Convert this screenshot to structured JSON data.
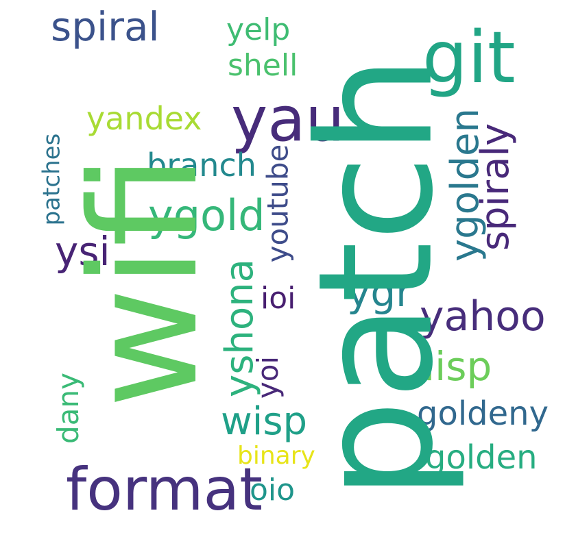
{
  "words": [
    {
      "text": "patch",
      "color": "#22a785"
    },
    {
      "text": "wifi",
      "color": "#5ec962"
    },
    {
      "text": "git",
      "color": "#21a585"
    },
    {
      "text": "format",
      "color": "#46327e"
    },
    {
      "text": "yau",
      "color": "#472c7a"
    },
    {
      "text": "spiral",
      "color": "#3b528b"
    },
    {
      "text": "spiraly",
      "color": "#482979"
    },
    {
      "text": "ygolden",
      "color": "#2a788e"
    },
    {
      "text": "ygold",
      "color": "#35b779"
    },
    {
      "text": "yshona",
      "color": "#2db27d"
    },
    {
      "text": "ysi",
      "color": "#482475"
    },
    {
      "text": "yahoo",
      "color": "#472d7b"
    },
    {
      "text": "wisp",
      "color": "#1fa088"
    },
    {
      "text": "lisp",
      "color": "#6ccd5a"
    },
    {
      "text": "ygr",
      "color": "#25858e"
    },
    {
      "text": "golden",
      "color": "#27ad81"
    },
    {
      "text": "goldeny",
      "color": "#31688e"
    },
    {
      "text": "branch",
      "color": "#23898e"
    },
    {
      "text": "yandex",
      "color": "#a8db34"
    },
    {
      "text": "youtube",
      "color": "#3e4c8a"
    },
    {
      "text": "shell",
      "color": "#4ac16d"
    },
    {
      "text": "yelp",
      "color": "#3fbc73"
    },
    {
      "text": "yoi",
      "color": "#482878"
    },
    {
      "text": "dany",
      "color": "#3aba76"
    },
    {
      "text": "ioi",
      "color": "#481f70"
    },
    {
      "text": "oio",
      "color": "#1f958b"
    },
    {
      "text": "patches",
      "color": "#2c738e"
    },
    {
      "text": "binary",
      "color": "#e7e419"
    }
  ]
}
